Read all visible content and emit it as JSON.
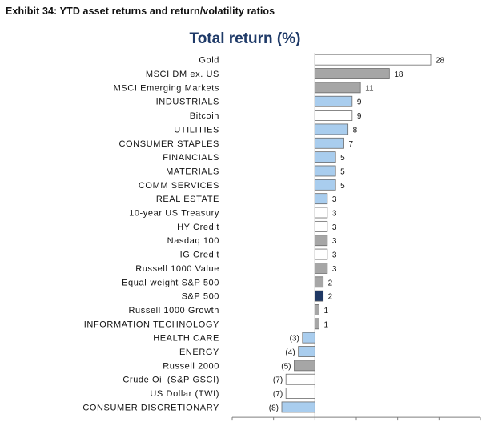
{
  "exhibit_title": "Exhibit 34: YTD asset returns and return/volatility ratios",
  "colors": {
    "gold_fill": "#ffffff",
    "gray_fill": "#a6a6a6",
    "blue_fill": "#a9cdee",
    "white_fill": "#ffffff",
    "highlight_fill": "#1f3864",
    "bar_outline": "#6a6a6a",
    "title_color": "#1f3a68"
  },
  "chart_data": {
    "type": "bar",
    "orientation": "horizontal",
    "title": "Total return (%)",
    "xlim": [
      -20,
      40
    ],
    "grid": false,
    "categories": [
      "Gold",
      "MSCI DM ex. US",
      "MSCI Emerging Markets",
      "INDUSTRIALS",
      "Bitcoin",
      "UTILITIES",
      "CONSUMER STAPLES",
      "FINANCIALS",
      "MATERIALS",
      "COMM SERVICES",
      "REAL ESTATE",
      "10-year US Treasury",
      "HY Credit",
      "Nasdaq 100",
      "IG Credit",
      "Russell 1000 Value",
      "Equal-weight S&P 500",
      "S&P 500",
      "Russell 1000 Growth",
      "INFORMATION TECHNOLOGY",
      "HEALTH CARE",
      "ENERGY",
      "Russell 2000",
      "Crude Oil (S&P GSCI)",
      "US Dollar (TWI)",
      "CONSUMER DISCRETIONARY"
    ],
    "values": [
      28,
      18,
      11,
      9,
      9,
      8,
      7,
      5,
      5,
      5,
      3,
      3,
      3,
      3,
      3,
      3,
      2,
      2,
      1,
      1,
      -3,
      -4,
      -5,
      -7,
      -7,
      -8
    ],
    "value_labels": [
      "28",
      "18",
      "11",
      "9",
      "9",
      "8",
      "7",
      "5",
      "5",
      "5",
      "3",
      "3",
      "3",
      "3",
      "3",
      "3",
      "2",
      "2",
      "1",
      "1",
      "(3)",
      "(4)",
      "(5)",
      "(7)",
      "(7)",
      "(8)"
    ],
    "bar_styles": [
      "white",
      "gray",
      "gray",
      "blue",
      "white",
      "blue",
      "blue",
      "blue",
      "blue",
      "blue",
      "blue",
      "white",
      "white",
      "gray",
      "white",
      "gray",
      "gray",
      "highlight",
      "gray",
      "gray",
      "blue",
      "blue",
      "gray",
      "white",
      "white",
      "blue"
    ]
  }
}
